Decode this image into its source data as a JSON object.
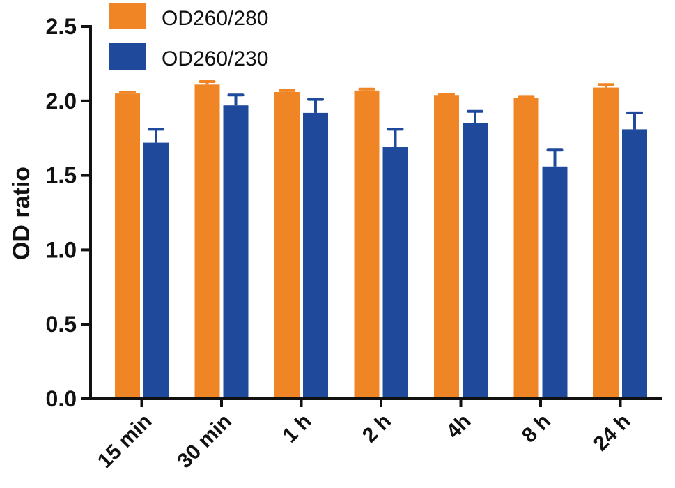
{
  "chart_data": {
    "type": "bar",
    "categories": [
      "15 min",
      "30 min",
      "1 h",
      "2 h",
      "4h",
      "8 h",
      "24 h"
    ],
    "series": [
      {
        "name": "OD260/280",
        "color": "#f08526",
        "values": [
          2.05,
          2.11,
          2.06,
          2.07,
          2.04,
          2.02,
          2.09
        ],
        "errors": [
          0.01,
          0.02,
          0.01,
          0.01,
          0.005,
          0.01,
          0.02
        ]
      },
      {
        "name": "OD260/230",
        "color": "#1f4a9c",
        "values": [
          1.72,
          1.97,
          1.92,
          1.69,
          1.85,
          1.56,
          1.81
        ],
        "errors": [
          0.09,
          0.07,
          0.09,
          0.12,
          0.08,
          0.11,
          0.11
        ]
      }
    ],
    "ylabel": "OD ratio",
    "xlabel": "",
    "ylim": [
      0,
      2.5
    ],
    "yticks": [
      "0.0",
      "0.5",
      "1.0",
      "1.5",
      "2.0",
      "2.5"
    ],
    "legend_position": "top-left",
    "grid": false
  }
}
